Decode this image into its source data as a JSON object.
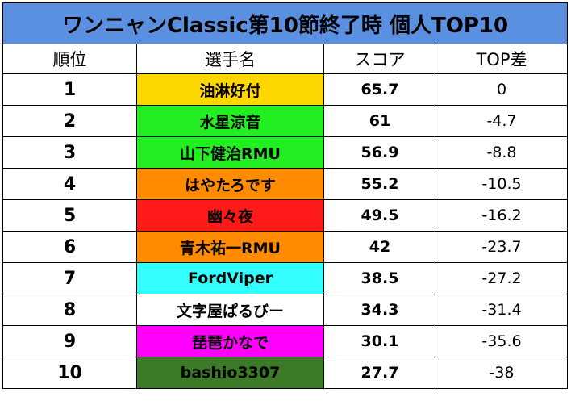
{
  "title": "ワンニャンClassic第10節終了時 個人TOP10",
  "headers": {
    "rank": "順位",
    "player": "選手名",
    "score": "スコア",
    "top_diff": "TOP差"
  },
  "rows": [
    {
      "rank": "1",
      "player": "油淋好付",
      "score": "65.7",
      "diff": "0",
      "color": "#ffd700"
    },
    {
      "rank": "2",
      "player": "水星涼音",
      "score": "61",
      "diff": "-4.7",
      "color": "#22ee22"
    },
    {
      "rank": "3",
      "player": "山下健治RMU",
      "score": "56.9",
      "diff": "-8.8",
      "color": "#22ee22"
    },
    {
      "rank": "4",
      "player": "はやたろです",
      "score": "55.2",
      "diff": "-10.5",
      "color": "#ff8c00"
    },
    {
      "rank": "5",
      "player": "幽々夜",
      "score": "49.5",
      "diff": "-16.2",
      "color": "#ff1a1a"
    },
    {
      "rank": "6",
      "player": "青木祐一RMU",
      "score": "42",
      "diff": "-23.7",
      "color": "#ff8c00"
    },
    {
      "rank": "7",
      "player": "FordViper",
      "score": "38.5",
      "diff": "-27.2",
      "color": "#33ffff"
    },
    {
      "rank": "8",
      "player": "文字屋ぱるびー",
      "score": "34.3",
      "diff": "-31.4",
      "color": "#ffffff"
    },
    {
      "rank": "9",
      "player": "琵琶かなで",
      "score": "30.1",
      "diff": "-35.6",
      "color": "#ff00ff"
    },
    {
      "rank": "10",
      "player": "bashio3307",
      "score": "27.7",
      "diff": "-38",
      "color": "#3d7a28"
    }
  ]
}
